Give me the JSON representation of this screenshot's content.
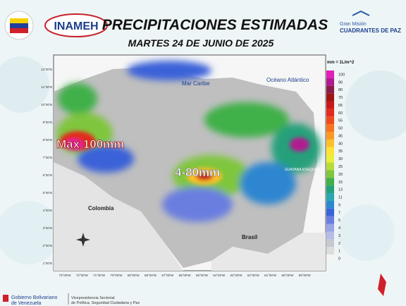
{
  "header": {
    "title": "PRECIPITACIONES ESTIMADAS",
    "date": "MARTES 24 DE JUNIO DE 2025",
    "agency": "INAMEH",
    "program_top": "Gran Misión",
    "program_name": "CUADRANTES DE PAZ"
  },
  "map": {
    "labels": {
      "sea": "Mar Caribe",
      "ocean": "Océano Atlántico",
      "colombia": "Colombia",
      "brasil": "Brasil",
      "guayana": "GUAYANA ESEQUIBA",
      "max": "Max 100mm",
      "range": "4-80mm"
    },
    "lat_labels": [
      "12°00'N",
      "11°00'N",
      "10°00'N",
      "9°00'N",
      "8°00'N",
      "7°00'N",
      "6°00'N",
      "5°00'N",
      "4°00'N",
      "3°00'N",
      "2°00'N",
      "1°00'N"
    ],
    "lon_labels": [
      "73°00'W",
      "72°00'W",
      "71°00'W",
      "70°00'W",
      "69°00'W",
      "68°00'W",
      "67°00'W",
      "66°00'W",
      "65°00'W",
      "64°00'W",
      "63°00'W",
      "62°00'W",
      "61°00'W",
      "60°00'W",
      "59°00'W"
    ],
    "legend": {
      "unit": "mm = 1L/m^2",
      "items": [
        {
          "value": 100,
          "color": "#e21fb7"
        },
        {
          "value": 90,
          "color": "#b01a8f"
        },
        {
          "value": 80,
          "color": "#8a1c4a"
        },
        {
          "value": 70,
          "color": "#a01414"
        },
        {
          "value": 65,
          "color": "#c8181a"
        },
        {
          "value": 60,
          "color": "#e42a1e"
        },
        {
          "value": 55,
          "color": "#f04a1c"
        },
        {
          "value": 50,
          "color": "#f7731c"
        },
        {
          "value": 45,
          "color": "#fb9a22"
        },
        {
          "value": 40,
          "color": "#fdc02a"
        },
        {
          "value": 35,
          "color": "#fde234"
        },
        {
          "value": 30,
          "color": "#e8ee3a"
        },
        {
          "value": 25,
          "color": "#b6dc3a"
        },
        {
          "value": 20,
          "color": "#7fc63c"
        },
        {
          "value": 15,
          "color": "#40b04a"
        },
        {
          "value": 13,
          "color": "#25a07a"
        },
        {
          "value": 11,
          "color": "#2aa6b0"
        },
        {
          "value": 9,
          "color": "#2e86d0"
        },
        {
          "value": 7,
          "color": "#3a62d8"
        },
        {
          "value": 5,
          "color": "#6a7ee0"
        },
        {
          "value": 4,
          "color": "#98a4e6"
        },
        {
          "value": 3,
          "color": "#b8bde6"
        },
        {
          "value": 2,
          "color": "#c8c8d0"
        },
        {
          "value": 1,
          "color": "#dcdcdc"
        },
        {
          "value": 0,
          "color": "#f4f4f4"
        }
      ]
    }
  },
  "footer": {
    "gov_line1": "Gobierno Bolivariano",
    "gov_line2": "de Venezuela",
    "vp_line1": "Vicepresidencia Sectorial",
    "vp_line2": "de Política, Seguridad Ciudadana y Paz"
  }
}
